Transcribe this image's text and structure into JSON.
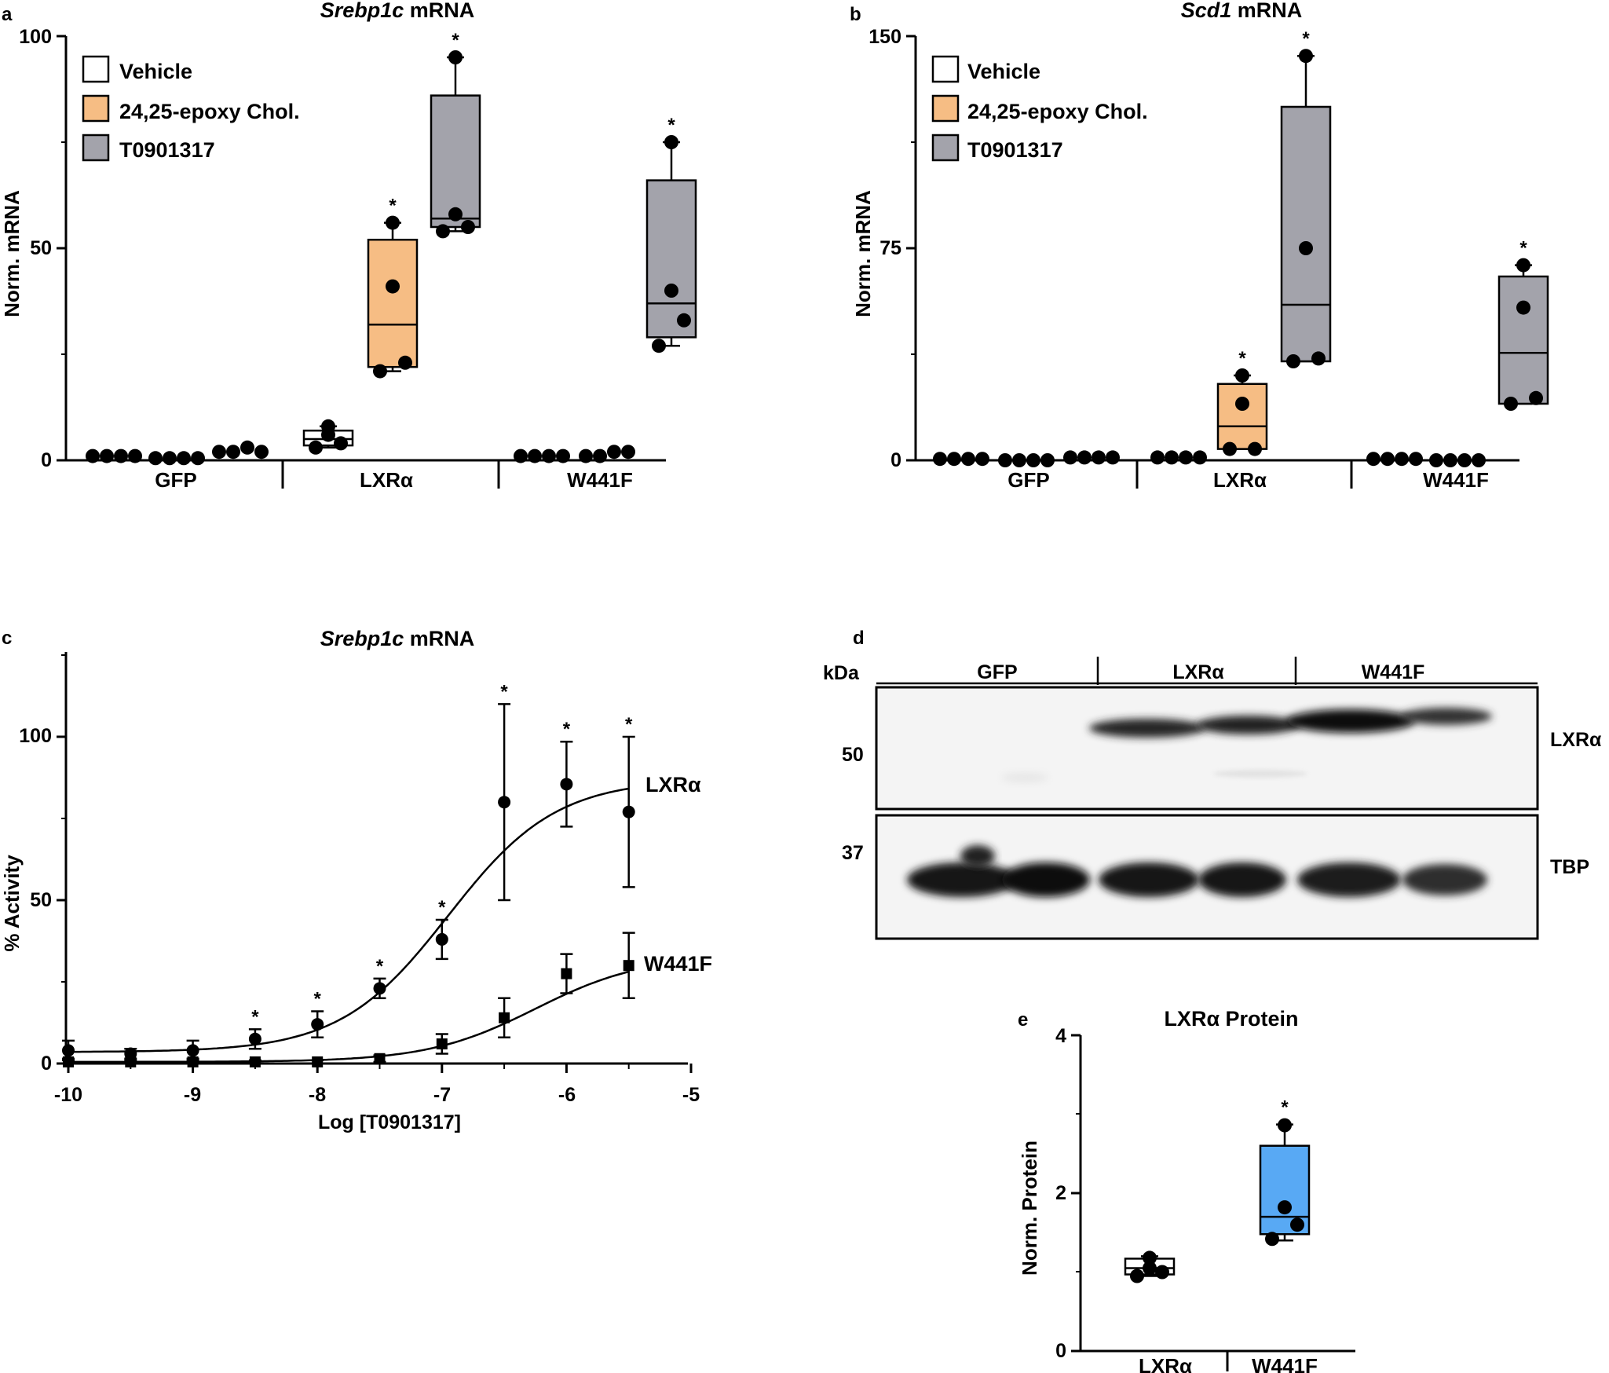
{
  "panel_a": {
    "letter": "a",
    "title_italic": "Srebp1c",
    "title_rest": " mRNA",
    "ylabel": "Norm. mRNA",
    "yticks": [
      "0",
      "50",
      "100"
    ],
    "groups": [
      "GFP",
      "LXRα",
      "W441F"
    ],
    "legend": [
      "Vehicle",
      "24,25-epoxy Chol.",
      "T0901317"
    ]
  },
  "panel_b": {
    "letter": "b",
    "title_italic": "Scd1",
    "title_rest": " mRNA",
    "ylabel": "Norm. mRNA",
    "yticks": [
      "0",
      "75",
      "150"
    ],
    "groups": [
      "GFP",
      "LXRα",
      "W441F"
    ],
    "legend": [
      "Vehicle",
      "24,25-epoxy Chol.",
      "T0901317"
    ]
  },
  "panel_c": {
    "letter": "c",
    "title_italic": "Srebp1c",
    "title_rest": " mRNA",
    "ylabel": "% Activity",
    "xlabel": "Log [T0901317]",
    "yticks": [
      "0",
      "50",
      "100"
    ],
    "xticks": [
      "-10",
      "-9",
      "-8",
      "-7",
      "-6",
      "-5"
    ],
    "series_labels": [
      "LXRα",
      "W441F"
    ]
  },
  "panel_d": {
    "letter": "d",
    "kda_label": "kDa",
    "lanes": [
      "GFP",
      "LXRα",
      "W441F"
    ],
    "markers": [
      "50",
      "37"
    ],
    "bands": [
      "LXRα",
      "TBP"
    ]
  },
  "panel_e": {
    "letter": "e",
    "title": "LXRα Protein",
    "ylabel": "Norm. Protein",
    "yticks": [
      "0",
      "2",
      "4"
    ],
    "groups": [
      "LXRα",
      "W441F"
    ]
  },
  "colors": {
    "vehicle": "#ffffff",
    "epoxy": "#f6bd84",
    "t0901317": "#a3a3ab",
    "lxr_protein": "#58a9f4",
    "lxr_protein_ctrl": "#ffffff"
  },
  "chart_data": [
    {
      "panel": "a",
      "type": "box",
      "title": "Srebp1c mRNA",
      "ylabel": "Norm. mRNA",
      "ylim": [
        0,
        100
      ],
      "categories": [
        "GFP",
        "LXRα",
        "W441F"
      ],
      "series": [
        {
          "name": "Vehicle",
          "values": [
            {
              "points": [
                1,
                1,
                1,
                1
              ]
            },
            {
              "min": 3,
              "q1": 3.5,
              "median": 5,
              "q3": 7,
              "max": 8,
              "points": [
                3,
                4,
                6,
                8
              ]
            },
            {
              "points": [
                1,
                1,
                1,
                1
              ]
            }
          ]
        },
        {
          "name": "24,25-epoxy Chol.",
          "values": [
            {
              "points": [
                0.5,
                0.5,
                0.5,
                0.5
              ]
            },
            {
              "min": 21,
              "q1": 22,
              "median": 32,
              "q3": 52,
              "max": 56,
              "points": [
                21,
                23,
                41,
                56
              ],
              "significant": true
            },
            {
              "points": [
                1,
                1,
                2,
                2
              ]
            }
          ]
        },
        {
          "name": "T0901317",
          "values": [
            {
              "points": [
                2,
                2,
                3,
                2
              ]
            },
            {
              "min": 54,
              "q1": 55,
              "median": 57,
              "q3": 86,
              "max": 95,
              "points": [
                54,
                55,
                58,
                95
              ],
              "significant": true
            },
            {
              "min": 27,
              "q1": 29,
              "median": 37,
              "q3": 66,
              "max": 75,
              "points": [
                27,
                33,
                40,
                75
              ],
              "significant": true
            }
          ]
        }
      ]
    },
    {
      "panel": "b",
      "type": "box",
      "title": "Scd1 mRNA",
      "ylabel": "Norm. mRNA",
      "ylim": [
        0,
        150
      ],
      "categories": [
        "GFP",
        "LXRα",
        "W441F"
      ],
      "series": [
        {
          "name": "Vehicle",
          "values": [
            {
              "points": [
                0.5,
                0.5,
                0.5,
                0.5
              ]
            },
            {
              "points": [
                1,
                1,
                1,
                1
              ]
            },
            {
              "points": [
                0.5,
                0.5,
                0.5,
                0.5
              ]
            }
          ]
        },
        {
          "name": "24,25-epoxy Chol.",
          "values": [
            {
              "points": [
                0,
                0,
                0,
                0
              ]
            },
            {
              "min": 4,
              "q1": 4,
              "median": 12,
              "q3": 27,
              "max": 30,
              "points": [
                4,
                4,
                20,
                30
              ],
              "significant": true
            },
            {
              "points": [
                0,
                0,
                0,
                0
              ]
            }
          ]
        },
        {
          "name": "T0901317",
          "values": [
            {
              "points": [
                1,
                1,
                1,
                1
              ]
            },
            {
              "min": 35,
              "q1": 35,
              "median": 55,
              "q3": 125,
              "max": 143,
              "points": [
                35,
                36,
                75,
                143
              ],
              "significant": true
            },
            {
              "min": 20,
              "q1": 20,
              "median": 38,
              "q3": 65,
              "max": 69,
              "points": [
                20,
                22,
                54,
                69
              ],
              "significant": true
            }
          ]
        }
      ]
    },
    {
      "panel": "c",
      "type": "scatter",
      "title": "Srebp1c mRNA",
      "xlabel": "Log [T0901317]",
      "ylabel": "% Activity",
      "xlim": [
        -10,
        -5
      ],
      "ylim": [
        0,
        125
      ],
      "series": [
        {
          "name": "LXRα",
          "marker": "circle",
          "x": [
            -10,
            -9.5,
            -9,
            -8.5,
            -8,
            -7.5,
            -7,
            -6.5,
            -6,
            -5.5
          ],
          "y": [
            4,
            3,
            4,
            7.5,
            12,
            23,
            38,
            80,
            85.5,
            77
          ],
          "err": [
            3,
            1.5,
            3,
            3,
            4,
            3,
            6,
            30,
            13,
            23
          ],
          "significant": [
            false,
            false,
            false,
            true,
            true,
            true,
            true,
            true,
            true,
            true
          ],
          "fit": {
            "bottom": 3.5,
            "top": 87,
            "logEC50": -6.95,
            "hill": 1
          }
        },
        {
          "name": "W441F",
          "marker": "square",
          "x": [
            -10,
            -9.5,
            -9,
            -8.5,
            -8,
            -7.5,
            -7,
            -6.5,
            -6,
            -5.5
          ],
          "y": [
            0.5,
            0.5,
            0.5,
            0.5,
            0.5,
            1.5,
            6,
            14,
            27.5,
            30
          ],
          "err": [
            1,
            0.5,
            1,
            0.5,
            0.5,
            1,
            3,
            6,
            6,
            10
          ],
          "fit": {
            "bottom": 0.5,
            "top": 33,
            "logEC50": -6.25,
            "hill": 1
          }
        }
      ]
    },
    {
      "panel": "e",
      "type": "box",
      "title": "LXRα Protein",
      "ylabel": "Norm. Protein",
      "ylim": [
        0,
        4
      ],
      "categories": [
        "LXRα",
        "W441F"
      ],
      "values": [
        {
          "min": 0.95,
          "q1": 0.97,
          "median": 1.05,
          "q3": 1.17,
          "max": 1.2,
          "points": [
            0.95,
            1.0,
            1.05,
            1.18
          ]
        },
        {
          "min": 1.4,
          "q1": 1.48,
          "median": 1.7,
          "q3": 2.6,
          "max": 2.87,
          "points": [
            1.42,
            1.6,
            1.82,
            2.86
          ],
          "significant": true
        }
      ]
    }
  ]
}
